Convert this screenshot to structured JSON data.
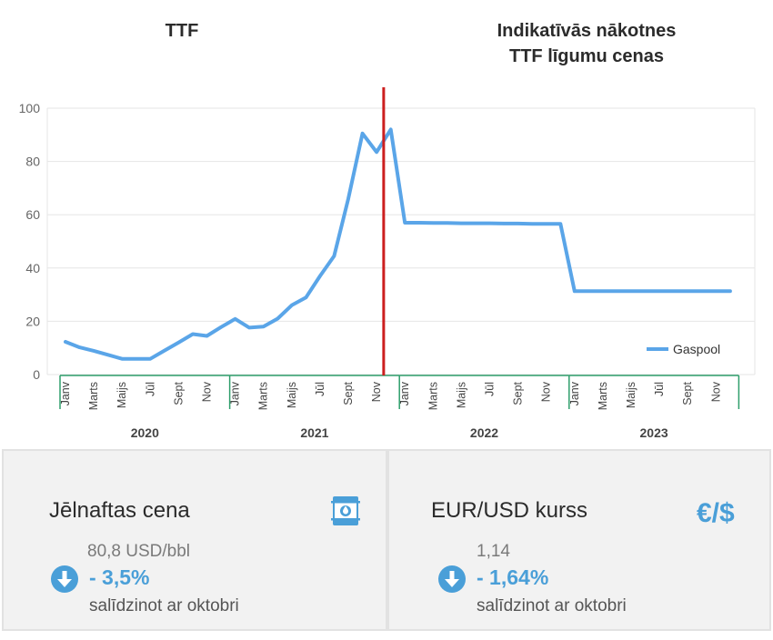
{
  "titles": {
    "left": "TTF",
    "right_line1": "Indikatīvās nākotnes",
    "right_line2": "TTF līgumu cenas"
  },
  "colors": {
    "series": "#5aa5e8",
    "divider": "#cc1f1f",
    "grid": "#e6e6e6",
    "axis_green": "#2e9e6b",
    "accent": "#4a9fd8"
  },
  "chart_data": {
    "type": "line",
    "ylim": [
      0,
      100
    ],
    "yticks": [
      0,
      20,
      40,
      60,
      80,
      100
    ],
    "grid": true,
    "legend_position": "bottom-right",
    "month_labels": [
      "Janv",
      "Marts",
      "Maijs",
      "Jūl",
      "Sept",
      "Nov"
    ],
    "years": [
      "2020",
      "2021",
      "2022",
      "2023"
    ],
    "x": [
      "2020-01",
      "2020-02",
      "2020-03",
      "2020-04",
      "2020-05",
      "2020-06",
      "2020-07",
      "2020-08",
      "2020-09",
      "2020-10",
      "2020-11",
      "2020-12",
      "2021-01",
      "2021-02",
      "2021-03",
      "2021-04",
      "2021-05",
      "2021-06",
      "2021-07",
      "2021-08",
      "2021-09",
      "2021-10",
      "2021-11",
      "2021-12",
      "2022-01",
      "2022-02",
      "2022-03",
      "2022-04",
      "2022-05",
      "2022-06",
      "2022-07",
      "2022-08",
      "2022-09",
      "2022-10",
      "2022-11",
      "2022-12",
      "2023-01",
      "2023-02",
      "2023-03",
      "2023-04",
      "2023-05",
      "2023-06",
      "2023-07",
      "2023-08",
      "2023-09",
      "2023-10",
      "2023-11",
      "2023-12"
    ],
    "series": [
      {
        "name": "Gaspool",
        "values": [
          12.3,
          10.2,
          8.9,
          7.4,
          5.9,
          5.9,
          5.9,
          9.0,
          12.0,
          15.2,
          14.5,
          17.8,
          20.9,
          17.6,
          18.0,
          21.0,
          26.0,
          28.9,
          37.0,
          44.5,
          66.0,
          90.5,
          83.5,
          92.0,
          57.0,
          57.0,
          56.9,
          56.9,
          56.8,
          56.8,
          56.8,
          56.7,
          56.7,
          56.6,
          56.6,
          56.6,
          31.3,
          31.3,
          31.3,
          31.3,
          31.3,
          31.3,
          31.3,
          31.3,
          31.3,
          31.3,
          31.3,
          31.3
        ]
      }
    ]
  },
  "cards": {
    "oil": {
      "title": "Jēlnaftas cena",
      "value": "80,8 USD/bbl",
      "change": "- 3,5%",
      "note": "salīdzinot ar oktobri"
    },
    "fx": {
      "title": "EUR/USD kurss",
      "symbol": "€/$",
      "value": "1,14",
      "change": "- 1,64%",
      "note": "salīdzinot ar oktobri"
    }
  }
}
